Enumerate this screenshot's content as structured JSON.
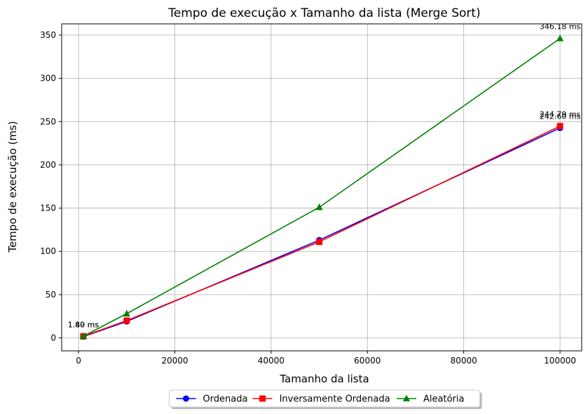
{
  "chart_data": {
    "type": "line",
    "title": "Tempo de execução x Tamanho da lista (Merge Sort)",
    "xlabel": "Tamanho da lista",
    "ylabel": "Tempo de execução (ms)",
    "xlim": [
      -3500,
      104500
    ],
    "ylim": [
      -15,
      363
    ],
    "xticks": [
      0,
      20000,
      40000,
      60000,
      80000,
      100000
    ],
    "yticks": [
      0,
      50,
      100,
      150,
      200,
      250,
      300,
      350
    ],
    "grid": true,
    "legend_position": "bottom-center",
    "x": [
      1000,
      10000,
      50000,
      100000
    ],
    "series": [
      {
        "name": "Ordenada",
        "values": [
          1.49,
          19,
          113,
          242.6
        ],
        "color": "#0000ff",
        "marker": "circle"
      },
      {
        "name": "Inversamente Ordenada",
        "values": [
          1.8,
          20,
          111,
          244.79
        ],
        "color": "#ff0000",
        "marker": "square"
      },
      {
        "name": "Aleatória",
        "values": [
          1.9,
          28,
          151,
          346.18
        ],
        "color": "#008000",
        "marker": "triangle"
      }
    ],
    "annotations": [
      {
        "x": 1000,
        "y": 1.49,
        "text": "1.49 ms"
      },
      {
        "x": 1000,
        "y": 1.8,
        "text": "1.80 ms"
      },
      {
        "x": 100000,
        "y": 242.6,
        "text": "242.60 ms"
      },
      {
        "x": 100000,
        "y": 244.79,
        "text": "244.79 ms"
      },
      {
        "x": 100000,
        "y": 346.18,
        "text": "346.18 ms"
      }
    ]
  }
}
